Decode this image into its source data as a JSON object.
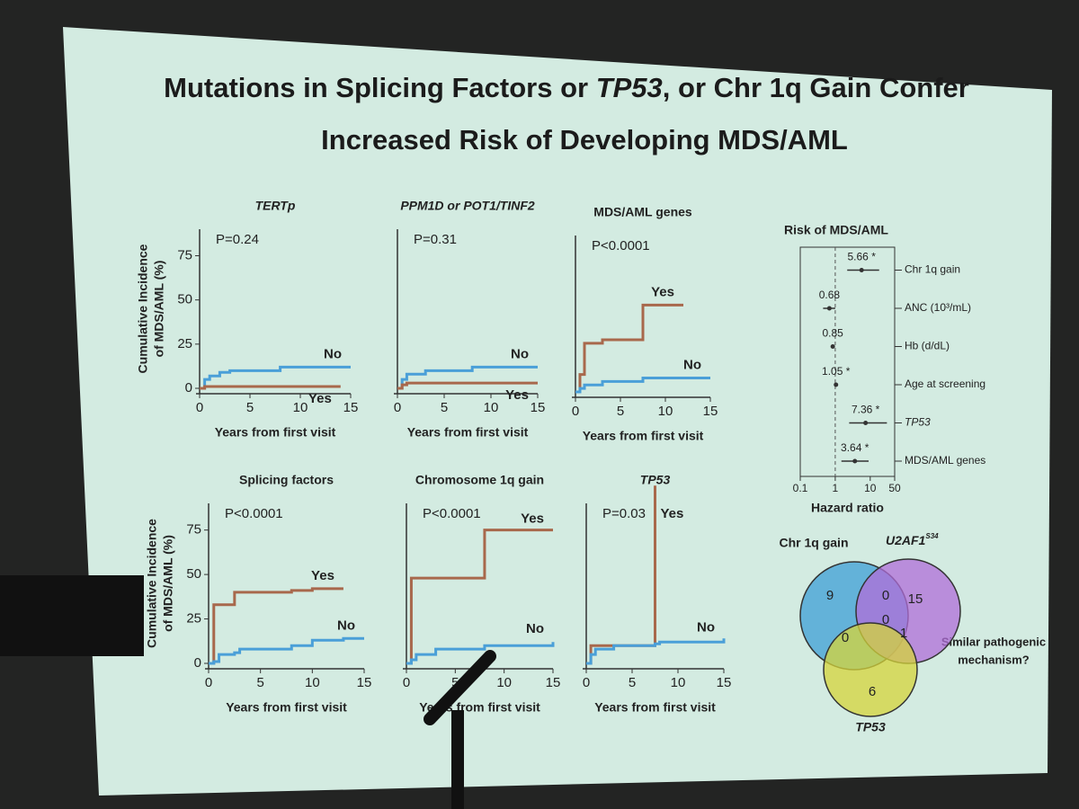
{
  "slide": {
    "title_line1": [
      "Mutations in Splicing Factors or ",
      "TP53",
      ", or Chr 1q Gain Confer"
    ],
    "title_line2": "Increased Risk of Developing MDS/AML",
    "note": [
      "Similar pathogenic",
      "mechanism?"
    ]
  },
  "chart_data": [
    {
      "type": "line",
      "step": true,
      "title": "TERTp",
      "annotation": "P=0.24",
      "ylabel": [
        "Cumulative Incidence",
        "of MDS/AML (%)"
      ],
      "xlabel": "Years from first visit",
      "x": [
        0,
        0.5,
        1,
        2,
        3,
        8,
        14,
        15
      ],
      "xlim": [
        0,
        15
      ],
      "xticks": [
        0,
        5,
        10,
        15
      ],
      "ylim": [
        0,
        90
      ],
      "yticks": [
        0,
        25,
        50,
        75
      ],
      "series": [
        {
          "name": "No",
          "color": "#4a9fd8",
          "values": [
            0,
            5,
            7,
            9,
            10,
            12,
            12,
            12
          ]
        },
        {
          "name": "Yes",
          "color": "#a8684c",
          "values": [
            0,
            1,
            1,
            1,
            1,
            1,
            1,
            null
          ]
        }
      ]
    },
    {
      "type": "line",
      "step": true,
      "title": "PPM1D or POT1/TINF2",
      "annotation": "P=0.31",
      "xlabel": "Years from first visit",
      "x": [
        0,
        0.5,
        1,
        3,
        8,
        15
      ],
      "xlim": [
        0,
        15
      ],
      "xticks": [
        0,
        5,
        10,
        15
      ],
      "ylim": [
        0,
        90
      ],
      "series": [
        {
          "name": "No",
          "color": "#4a9fd8",
          "values": [
            0,
            5,
            8,
            10,
            12,
            12
          ]
        },
        {
          "name": "Yes",
          "color": "#a8684c",
          "values": [
            0,
            2,
            3,
            3,
            3,
            3
          ]
        }
      ]
    },
    {
      "type": "line",
      "step": true,
      "title": "MDS/AML genes",
      "annotation": "P<0.0001",
      "xlabel": "Years from first visit",
      "x": [
        0,
        0.5,
        1,
        3,
        7.5,
        12,
        15
      ],
      "xlim": [
        0,
        15
      ],
      "xticks": [
        0,
        5,
        10,
        15
      ],
      "ylim": [
        0,
        90
      ],
      "series": [
        {
          "name": "Yes",
          "color": "#a8684c",
          "values": [
            0,
            10,
            28,
            30,
            50,
            50,
            null
          ]
        },
        {
          "name": "No",
          "color": "#4a9fd8",
          "values": [
            0,
            2,
            4,
            6,
            8,
            8,
            8
          ]
        }
      ]
    },
    {
      "type": "line",
      "step": true,
      "title": "Splicing factors",
      "annotation": "P<0.0001",
      "ylabel": [
        "Cumulative Incidence",
        "of MDS/AML (%)"
      ],
      "xlabel": "Years from first visit",
      "x": [
        0,
        0.5,
        1,
        2.5,
        3,
        8,
        10,
        13,
        15
      ],
      "xlim": [
        0,
        15
      ],
      "xticks": [
        0,
        5,
        10,
        15
      ],
      "ylim": [
        0,
        90
      ],
      "yticks": [
        0,
        25,
        50,
        75
      ],
      "series": [
        {
          "name": "Yes",
          "color": "#a8684c",
          "values": [
            0,
            33,
            33,
            40,
            40,
            41,
            42,
            42,
            null
          ]
        },
        {
          "name": "No",
          "color": "#4a9fd8",
          "values": [
            0,
            1,
            5,
            6,
            8,
            10,
            13,
            14,
            14
          ]
        }
      ]
    },
    {
      "type": "line",
      "step": true,
      "title": "Chromosome 1q gain",
      "annotation": "P<0.0001",
      "xlabel": "Years from first visit",
      "x": [
        0,
        0.5,
        1,
        3,
        8,
        15
      ],
      "xlim": [
        0,
        15
      ],
      "xticks": [
        0,
        5,
        10,
        15
      ],
      "ylim": [
        0,
        90
      ],
      "series": [
        {
          "name": "Yes",
          "color": "#a8684c",
          "values": [
            0,
            48,
            48,
            48,
            75,
            75
          ]
        },
        {
          "name": "No",
          "color": "#4a9fd8",
          "values": [
            0,
            2,
            5,
            8,
            10,
            12
          ]
        }
      ]
    },
    {
      "type": "line",
      "step": true,
      "title": "TP53",
      "annotation": "P=0.03",
      "xlabel": "Years from first visit",
      "x": [
        0,
        0.5,
        1,
        3,
        7.5,
        8,
        15
      ],
      "xlim": [
        0,
        15
      ],
      "xticks": [
        0,
        5,
        10,
        15
      ],
      "ylim": [
        0,
        90
      ],
      "series": [
        {
          "name": "Yes",
          "color": "#a8684c",
          "values": [
            0,
            10,
            10,
            10,
            100,
            null,
            null
          ]
        },
        {
          "name": "No",
          "color": "#4a9fd8",
          "values": [
            0,
            5,
            8,
            10,
            11,
            12,
            14
          ]
        }
      ]
    },
    {
      "type": "forest",
      "title": "Risk of MDS/AML",
      "xlabel": "Hazard ratio",
      "log": true,
      "reference": 1,
      "xlim": [
        0.1,
        50
      ],
      "xticks": [
        0.1,
        1,
        10,
        50
      ],
      "categories": [
        "Chr 1q gain",
        "ANC (10³/mL)",
        "Hb (d/dL)",
        "Age at screening",
        "TP53",
        "MDS/AML genes"
      ],
      "values": [
        5.66,
        0.68,
        0.85,
        1.05,
        7.36,
        3.64
      ],
      "value_labels": [
        "5.66 *",
        "0.68",
        "0.85",
        "1.05 *",
        "7.36 *",
        "3.64 *"
      ],
      "lower": [
        2.2,
        0.45,
        0.75,
        1.0,
        2.5,
        1.5
      ],
      "upper": [
        18,
        1.0,
        0.95,
        1.1,
        30,
        9
      ],
      "color": "#333333"
    },
    {
      "type": "venn",
      "sets": [
        {
          "name": "Chr 1q gain",
          "color": "#3d9fd6"
        },
        {
          "name": "U2AF1",
          "sup": "S34",
          "color": "#b06ed8"
        },
        {
          "name": "TP53",
          "color": "#d6d43a"
        }
      ],
      "counts": [
        9,
        0,
        15,
        0,
        0,
        1,
        6
      ]
    }
  ]
}
